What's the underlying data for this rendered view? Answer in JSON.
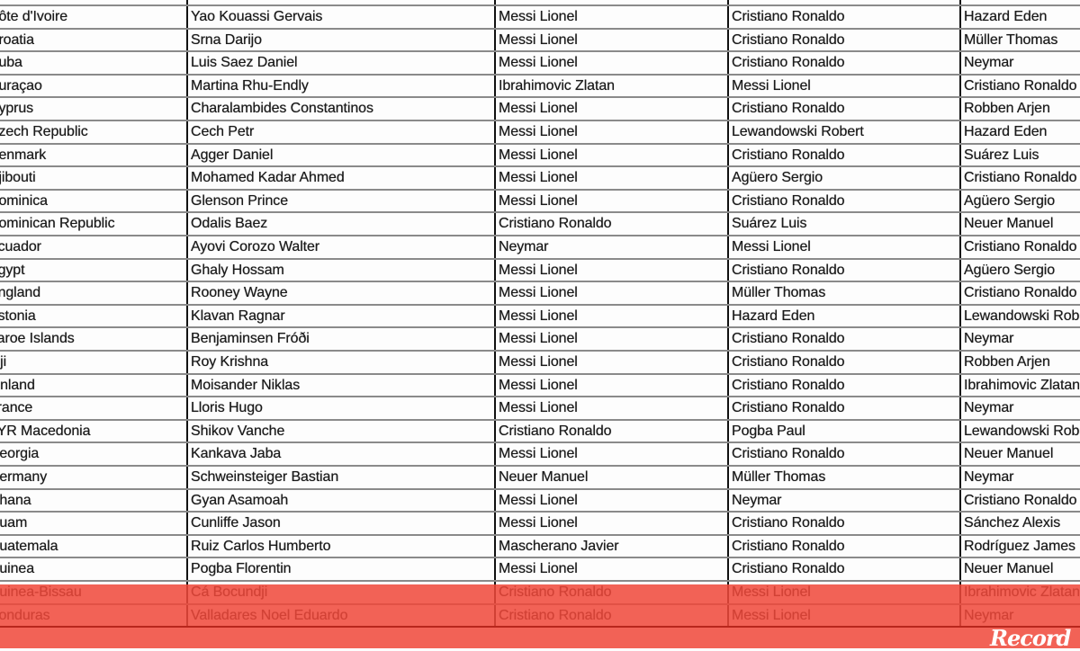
{
  "rows": [
    [
      "Côte d'Ivoire",
      "Yao  Kouassi Gervais",
      "Messi Lionel",
      "Cristiano Ronaldo",
      "Hazard Eden"
    ],
    [
      "Croatia",
      "Srna Darijo",
      "Messi Lionel",
      "Cristiano Ronaldo",
      "Müller Thomas"
    ],
    [
      "Cuba",
      "Luis Saez  Daniel",
      "Messi Lionel",
      "Cristiano Ronaldo",
      "Neymar"
    ],
    [
      "Curaçao",
      "Martina Rhu-Endly",
      "Ibrahimovic Zlatan",
      "Messi Lionel",
      "Cristiano Ronaldo"
    ],
    [
      "Cyprus",
      "Charalambides Constantinos",
      "Messi Lionel",
      "Cristiano Ronaldo",
      "Robben Arjen"
    ],
    [
      "Czech Republic",
      "Cech Petr",
      "Messi Lionel",
      "Lewandowski Robert",
      "Hazard Eden"
    ],
    [
      "Denmark",
      "Agger Daniel",
      "Messi Lionel",
      "Cristiano Ronaldo",
      "Suárez Luis"
    ],
    [
      "Djibouti",
      "Mohamed Kadar Ahmed",
      "Messi Lionel",
      "Agüero Sergio",
      "Cristiano Ronaldo"
    ],
    [
      "Dominica",
      "Glenson Prince",
      "Messi Lionel",
      "Cristiano Ronaldo",
      "Agüero Sergio"
    ],
    [
      "Dominican Republic",
      "Odalis Baez",
      "Cristiano Ronaldo",
      "Suárez Luis",
      "Neuer Manuel"
    ],
    [
      "Ecuador",
      "Ayovi Corozo  Walter",
      "Neymar",
      "Messi Lionel",
      "Cristiano Ronaldo"
    ],
    [
      "Egypt",
      "Ghaly Hossam",
      "Messi Lionel",
      "Cristiano Ronaldo",
      "Agüero Sergio"
    ],
    [
      "England",
      "Rooney Wayne",
      "Messi Lionel",
      "Müller Thomas",
      "Cristiano Ronaldo"
    ],
    [
      "Estonia",
      "Klavan Ragnar",
      "Messi Lionel",
      "Hazard Eden",
      "Lewandowski Robert"
    ],
    [
      "Faroe Islands",
      "Benjaminsen Fróði",
      "Messi Lionel",
      "Cristiano Ronaldo",
      "Neymar"
    ],
    [
      "Fiji",
      "Roy Krishna",
      "Messi Lionel",
      "Cristiano Ronaldo",
      "Robben Arjen"
    ],
    [
      "Finland",
      "Moisander Niklas",
      "Messi Lionel",
      "Cristiano Ronaldo",
      "Ibrahimovic Zlatan"
    ],
    [
      "France",
      "Lloris Hugo",
      "Messi Lionel",
      "Cristiano Ronaldo",
      "Neymar"
    ],
    [
      "FYR Macedonia",
      "Shikov  Vanche",
      "Cristiano Ronaldo",
      "Pogba Paul",
      "Lewandowski Robert"
    ],
    [
      "Georgia",
      "Kankava Jaba",
      "Messi Lionel",
      "Cristiano Ronaldo",
      "Neuer Manuel"
    ],
    [
      "Germany",
      "Schweinsteiger Bastian",
      "Neuer Manuel",
      "Müller Thomas",
      "Neymar"
    ],
    [
      "Ghana",
      "Gyan Asamoah",
      "Messi Lionel",
      "Neymar",
      "Cristiano Ronaldo"
    ],
    [
      "Guam",
      "Cunliffe Jason",
      "Messi Lionel",
      "Cristiano Ronaldo",
      "Sánchez Alexis"
    ],
    [
      "Guatemala",
      "Ruiz Carlos Humberto",
      "Mascherano Javier",
      "Cristiano Ronaldo",
      "Rodríguez James"
    ],
    [
      "Guinea",
      "Pogba Florentin",
      "Messi Lionel",
      "Cristiano Ronaldo",
      "Neuer Manuel"
    ],
    [
      "Guinea-Bissau",
      "Cá Bocundji",
      "Cristiano Ronaldo",
      "Messi Lionel",
      "Ibrahimovic Zlatan"
    ],
    [
      "Honduras",
      "Valladares Noel Eduardo",
      "Cristiano Ronaldo",
      "Messi Lionel",
      "Neymar"
    ]
  ],
  "logo": "Record",
  "colors": {
    "highlight": "#f0483a",
    "logo": "#ffffff"
  }
}
